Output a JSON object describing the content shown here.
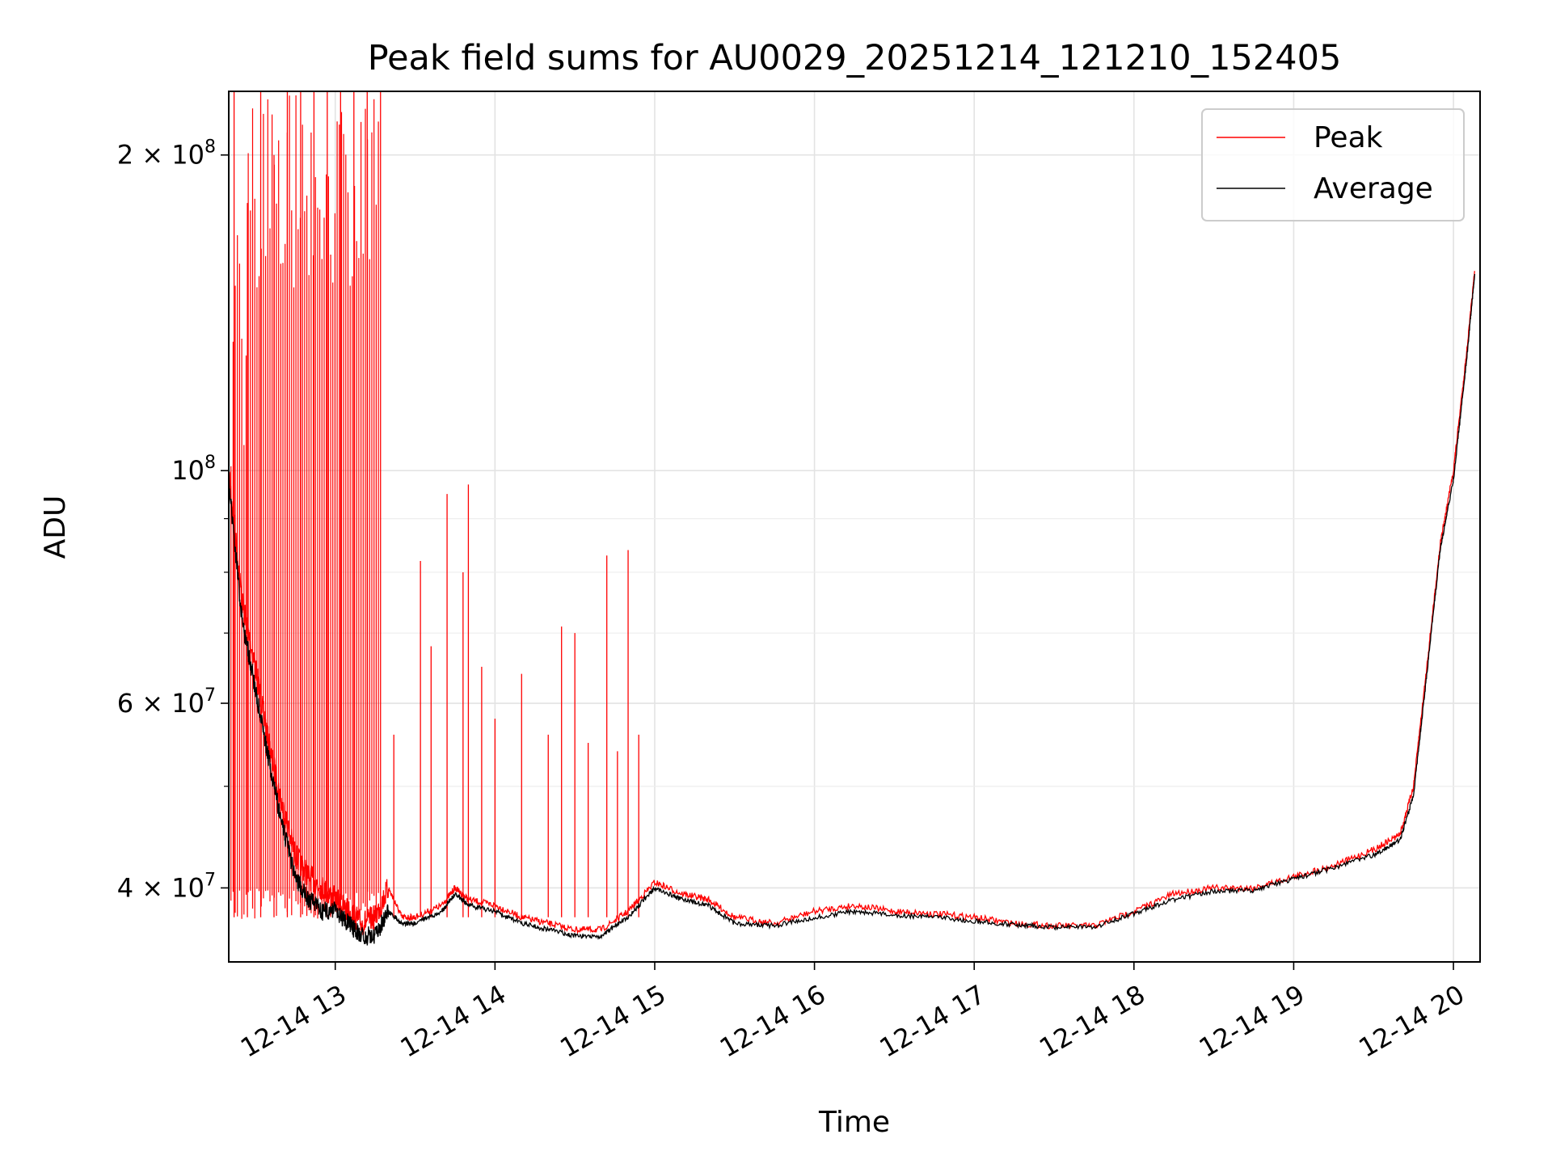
{
  "chart_data": {
    "type": "line",
    "title": "Peak field sums for AU0029_20251214_121210_152405",
    "xlabel": "Time",
    "ylabel": "ADU",
    "yscale": "log",
    "xlim": [
      "2025-12-14 12:20",
      "2025-12-14 20:10"
    ],
    "ylim": [
      34000000,
      230000000
    ],
    "grid": true,
    "legend_position": "top-right",
    "x_ticks": [
      {
        "value": "2025-12-14 13:00",
        "label": "12-14 13"
      },
      {
        "value": "2025-12-14 14:00",
        "label": "12-14 14"
      },
      {
        "value": "2025-12-14 15:00",
        "label": "12-14 15"
      },
      {
        "value": "2025-12-14 16:00",
        "label": "12-14 16"
      },
      {
        "value": "2025-12-14 17:00",
        "label": "12-14 17"
      },
      {
        "value": "2025-12-14 18:00",
        "label": "12-14 18"
      },
      {
        "value": "2025-12-14 19:00",
        "label": "12-14 19"
      },
      {
        "value": "2025-12-14 20:00",
        "label": "12-14 20"
      }
    ],
    "y_ticks": [
      {
        "value": 40000000,
        "base": "4 × 10",
        "exp": "7"
      },
      {
        "value": 60000000,
        "base": "6 × 10",
        "exp": "7"
      },
      {
        "value": 100000000,
        "base": "10",
        "exp": "8"
      },
      {
        "value": 200000000,
        "base": "2 × 10",
        "exp": "8"
      }
    ],
    "y_minor_ticks": [
      50000000,
      70000000,
      80000000,
      90000000
    ],
    "series": [
      {
        "name": "Peak",
        "color": "#ff0000",
        "x": [
          "2025-12-14 12:20",
          "2025-12-14 12:25",
          "2025-12-14 12:30",
          "2025-12-14 12:35",
          "2025-12-14 12:40",
          "2025-12-14 12:45",
          "2025-12-14 12:50",
          "2025-12-14 12:55",
          "2025-12-14 13:00",
          "2025-12-14 13:05",
          "2025-12-14 13:10",
          "2025-12-14 13:15",
          "2025-12-14 13:20",
          "2025-12-14 13:25",
          "2025-12-14 13:30",
          "2025-12-14 13:40",
          "2025-12-14 13:45",
          "2025-12-14 13:50",
          "2025-12-14 14:00",
          "2025-12-14 14:10",
          "2025-12-14 14:20",
          "2025-12-14 14:30",
          "2025-12-14 14:40",
          "2025-12-14 14:50",
          "2025-12-14 15:00",
          "2025-12-14 15:10",
          "2025-12-14 15:20",
          "2025-12-14 15:30",
          "2025-12-14 15:45",
          "2025-12-14 16:00",
          "2025-12-14 16:15",
          "2025-12-14 16:30",
          "2025-12-14 16:45",
          "2025-12-14 17:00",
          "2025-12-14 17:15",
          "2025-12-14 17:30",
          "2025-12-14 17:45",
          "2025-12-14 18:00",
          "2025-12-14 18:15",
          "2025-12-14 18:30",
          "2025-12-14 18:45",
          "2025-12-14 19:00",
          "2025-12-14 19:15",
          "2025-12-14 19:30",
          "2025-12-14 19:40",
          "2025-12-14 19:45",
          "2025-12-14 19:50",
          "2025-12-14 19:55",
          "2025-12-14 20:00",
          "2025-12-14 20:05",
          "2025-12-14 20:08"
        ],
        "y": [
          100000000,
          75000000,
          65000000,
          55000000,
          48000000,
          43000000,
          41000000,
          40000000,
          39000000,
          38000000,
          37000000,
          37500000,
          40000000,
          37500000,
          37500000,
          38500000,
          40000000,
          39000000,
          38500000,
          37500000,
          37000000,
          36500000,
          36500000,
          38000000,
          40500000,
          39500000,
          39000000,
          37500000,
          37000000,
          38000000,
          38500000,
          38000000,
          37800000,
          37500000,
          37000000,
          36800000,
          36800000,
          38000000,
          39500000,
          40000000,
          40000000,
          41000000,
          42000000,
          43500000,
          45000000,
          50000000,
          65000000,
          85000000,
          100000000,
          130000000,
          155000000
        ],
        "spikes": [
          {
            "x": "2025-12-14 12:22",
            "y": 230000000
          },
          {
            "x": "2025-12-14 12:27",
            "y": 180000000
          },
          {
            "x": "2025-12-14 12:32",
            "y": 230000000
          },
          {
            "x": "2025-12-14 12:37",
            "y": 200000000
          },
          {
            "x": "2025-12-14 12:42",
            "y": 230000000
          },
          {
            "x": "2025-12-14 12:47",
            "y": 230000000
          },
          {
            "x": "2025-12-14 12:52",
            "y": 230000000
          },
          {
            "x": "2025-12-14 12:57",
            "y": 230000000
          },
          {
            "x": "2025-12-14 13:02",
            "y": 230000000
          },
          {
            "x": "2025-12-14 13:07",
            "y": 230000000
          },
          {
            "x": "2025-12-14 13:12",
            "y": 230000000
          },
          {
            "x": "2025-12-14 13:17",
            "y": 230000000
          },
          {
            "x": "2025-12-14 13:22",
            "y": 56000000
          },
          {
            "x": "2025-12-14 13:32",
            "y": 82000000
          },
          {
            "x": "2025-12-14 13:36",
            "y": 68000000
          },
          {
            "x": "2025-12-14 13:42",
            "y": 95000000
          },
          {
            "x": "2025-12-14 13:48",
            "y": 80000000
          },
          {
            "x": "2025-12-14 13:50",
            "y": 97000000
          },
          {
            "x": "2025-12-14 13:55",
            "y": 65000000
          },
          {
            "x": "2025-12-14 14:00",
            "y": 58000000
          },
          {
            "x": "2025-12-14 14:10",
            "y": 64000000
          },
          {
            "x": "2025-12-14 14:20",
            "y": 56000000
          },
          {
            "x": "2025-12-14 14:25",
            "y": 71000000
          },
          {
            "x": "2025-12-14 14:30",
            "y": 70000000
          },
          {
            "x": "2025-12-14 14:35",
            "y": 55000000
          },
          {
            "x": "2025-12-14 14:42",
            "y": 83000000
          },
          {
            "x": "2025-12-14 14:46",
            "y": 54000000
          },
          {
            "x": "2025-12-14 14:50",
            "y": 84000000
          },
          {
            "x": "2025-12-14 14:54",
            "y": 56000000
          }
        ]
      },
      {
        "name": "Average",
        "color": "#000000",
        "x": [
          "2025-12-14 12:20",
          "2025-12-14 12:25",
          "2025-12-14 12:30",
          "2025-12-14 12:35",
          "2025-12-14 12:40",
          "2025-12-14 12:45",
          "2025-12-14 12:50",
          "2025-12-14 12:55",
          "2025-12-14 13:00",
          "2025-12-14 13:05",
          "2025-12-14 13:10",
          "2025-12-14 13:15",
          "2025-12-14 13:20",
          "2025-12-14 13:25",
          "2025-12-14 13:30",
          "2025-12-14 13:40",
          "2025-12-14 13:45",
          "2025-12-14 13:50",
          "2025-12-14 14:00",
          "2025-12-14 14:10",
          "2025-12-14 14:20",
          "2025-12-14 14:30",
          "2025-12-14 14:40",
          "2025-12-14 14:50",
          "2025-12-14 15:00",
          "2025-12-14 15:10",
          "2025-12-14 15:20",
          "2025-12-14 15:30",
          "2025-12-14 15:45",
          "2025-12-14 16:00",
          "2025-12-14 16:15",
          "2025-12-14 16:30",
          "2025-12-14 16:45",
          "2025-12-14 17:00",
          "2025-12-14 17:15",
          "2025-12-14 17:30",
          "2025-12-14 17:45",
          "2025-12-14 18:00",
          "2025-12-14 18:15",
          "2025-12-14 18:30",
          "2025-12-14 18:45",
          "2025-12-14 19:00",
          "2025-12-14 19:15",
          "2025-12-14 19:30",
          "2025-12-14 19:40",
          "2025-12-14 19:45",
          "2025-12-14 19:50",
          "2025-12-14 19:55",
          "2025-12-14 20:00",
          "2025-12-14 20:05",
          "2025-12-14 20:08"
        ],
        "y": [
          98000000,
          72000000,
          62000000,
          53000000,
          46000000,
          41000000,
          39000000,
          38000000,
          38000000,
          37000000,
          36000000,
          36000000,
          38000000,
          37000000,
          37000000,
          38000000,
          39500000,
          38500000,
          38000000,
          37000000,
          36500000,
          36000000,
          36000000,
          37500000,
          40000000,
          39000000,
          38500000,
          37000000,
          36800000,
          37500000,
          38000000,
          37700000,
          37500000,
          37200000,
          36900000,
          36700000,
          36700000,
          37800000,
          39000000,
          39700000,
          39800000,
          40800000,
          41800000,
          43000000,
          44500000,
          49000000,
          64000000,
          84000000,
          98000000,
          128000000,
          154000000
        ]
      }
    ]
  }
}
